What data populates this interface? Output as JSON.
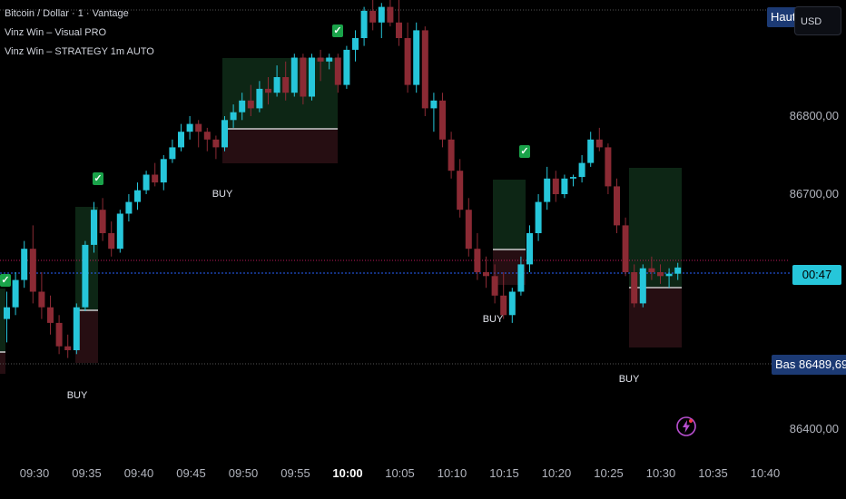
{
  "legend": {
    "symbol": "Bitcoin / Dollar · 1 · Vantage",
    "indicator1": "Vinz Win – Visual PRO",
    "indicator2": "Vinz Win – STRATEGY 1m AUTO"
  },
  "price_axis": {
    "ticks": [
      "86800,00",
      "86700,00",
      "86400,00"
    ],
    "currency": "USD",
    "high_label": "Haut",
    "low_label": "Bas",
    "low_value": "86489,69",
    "countdown": "00:47"
  },
  "time_axis": {
    "ticks": [
      "09:30",
      "09:35",
      "09:40",
      "09:45",
      "09:50",
      "09:55",
      "10:00",
      "10:05",
      "10:10",
      "10:15",
      "10:20",
      "10:25",
      "10:30",
      "10:35",
      "10:40"
    ],
    "bold_tick": "10:00"
  },
  "signals": {
    "buy_label": "BUY",
    "check_glyph": "✓"
  },
  "colors": {
    "up": "#26c6da",
    "down": "#8b2a34",
    "background": "#000000",
    "current_price_line": "#2962ff",
    "high_line": "#c2185b",
    "tag_blue": "#1c3a74",
    "countdown_bg": "#26c6da"
  },
  "chart_data": {
    "type": "candlestick",
    "ohlc": [
      [
        86540,
        86575,
        86510,
        86555
      ],
      [
        86555,
        86600,
        86545,
        86590
      ],
      [
        86590,
        86640,
        86580,
        86630
      ],
      [
        86630,
        86660,
        86560,
        86575
      ],
      [
        86575,
        86600,
        86540,
        86555
      ],
      [
        86555,
        86570,
        86520,
        86535
      ],
      [
        86535,
        86545,
        86495,
        86505
      ],
      [
        86505,
        86520,
        86490,
        86500
      ],
      [
        86500,
        86560,
        86495,
        86555
      ],
      [
        86555,
        86640,
        86550,
        86635
      ],
      [
        86635,
        86690,
        86625,
        86680
      ],
      [
        86680,
        86695,
        86640,
        86650
      ],
      [
        86650,
        86665,
        86620,
        86630
      ],
      [
        86630,
        86680,
        86625,
        86675
      ],
      [
        86675,
        86700,
        86665,
        86690
      ],
      [
        86690,
        86715,
        86680,
        86705
      ],
      [
        86705,
        86730,
        86700,
        86725
      ],
      [
        86725,
        86740,
        86710,
        86715
      ],
      [
        86715,
        86750,
        86705,
        86745
      ],
      [
        86745,
        86770,
        86740,
        86760
      ],
      [
        86760,
        86790,
        86755,
        86780
      ],
      [
        86780,
        86800,
        86770,
        86790
      ],
      [
        86790,
        86795,
        86760,
        86780
      ],
      [
        86780,
        86785,
        86755,
        86770
      ],
      [
        86770,
        86775,
        86745,
        86760
      ],
      [
        86760,
        86800,
        86755,
        86795
      ],
      [
        86795,
        86815,
        86785,
        86805
      ],
      [
        86805,
        86830,
        86795,
        86820
      ],
      [
        86820,
        86840,
        86800,
        86810
      ],
      [
        86810,
        86845,
        86805,
        86835
      ],
      [
        86835,
        86850,
        86815,
        86830
      ],
      [
        86830,
        86865,
        86825,
        86850
      ],
      [
        86850,
        86870,
        86820,
        86830
      ],
      [
        86830,
        86880,
        86825,
        86875
      ],
      [
        86875,
        86880,
        86815,
        86825
      ],
      [
        86825,
        86880,
        86820,
        86875
      ],
      [
        86875,
        86885,
        86845,
        86870
      ],
      [
        86870,
        86880,
        86860,
        86875
      ],
      [
        86875,
        86880,
        86830,
        86840
      ],
      [
        86840,
        86890,
        86835,
        86885
      ],
      [
        86885,
        86910,
        86870,
        86900
      ],
      [
        86900,
        86940,
        86890,
        86935
      ],
      [
        86935,
        86950,
        86910,
        86920
      ],
      [
        86920,
        86945,
        86900,
        86940
      ],
      [
        86940,
        86955,
        86915,
        86920
      ],
      [
        86920,
        86950,
        86890,
        86900
      ],
      [
        86900,
        86920,
        86830,
        86840
      ],
      [
        86840,
        86920,
        86830,
        86910
      ],
      [
        86910,
        86915,
        86800,
        86810
      ],
      [
        86810,
        86830,
        86780,
        86820
      ],
      [
        86820,
        86830,
        86760,
        86770
      ],
      [
        86770,
        86780,
        86720,
        86730
      ],
      [
        86730,
        86745,
        86670,
        86680
      ],
      [
        86680,
        86695,
        86620,
        86630
      ],
      [
        86630,
        86650,
        86590,
        86600
      ],
      [
        86600,
        86620,
        86580,
        86595
      ],
      [
        86595,
        86610,
        86560,
        86570
      ],
      [
        86570,
        86600,
        86540,
        86545
      ],
      [
        86545,
        86580,
        86535,
        86575
      ],
      [
        86575,
        86620,
        86570,
        86610
      ],
      [
        86610,
        86660,
        86600,
        86650
      ],
      [
        86650,
        86700,
        86640,
        86690
      ],
      [
        86690,
        86735,
        86680,
        86720
      ],
      [
        86720,
        86730,
        86690,
        86700
      ],
      [
        86700,
        86725,
        86695,
        86720
      ],
      [
        86720,
        86725,
        86710,
        86722
      ],
      [
        86722,
        86750,
        86715,
        86740
      ],
      [
        86740,
        86780,
        86735,
        86770
      ],
      [
        86770,
        86785,
        86755,
        86760
      ],
      [
        86760,
        86765,
        86700,
        86710
      ],
      [
        86710,
        86720,
        86650,
        86660
      ],
      [
        86660,
        86670,
        86595,
        86600
      ],
      [
        86600,
        86610,
        86555,
        86560
      ],
      [
        86560,
        86610,
        86555,
        86605
      ],
      [
        86605,
        86620,
        86590,
        86600
      ],
      [
        86600,
        86610,
        86585,
        86595
      ],
      [
        86595,
        86605,
        86580,
        86598
      ],
      [
        86598,
        86612,
        86590,
        86606
      ]
    ]
  }
}
